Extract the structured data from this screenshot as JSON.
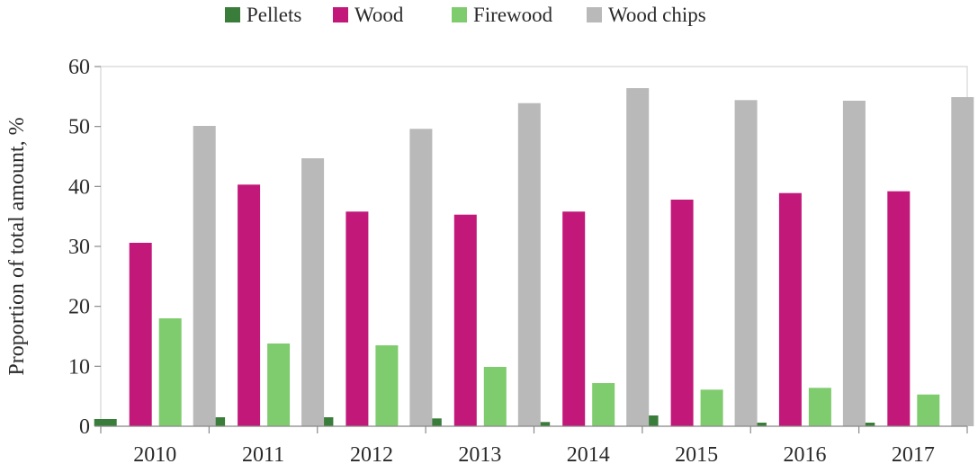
{
  "chart_data": {
    "type": "bar",
    "title": "",
    "xlabel": "",
    "ylabel": "Proportion of total amount, %",
    "ylim": [
      0,
      60
    ],
    "yticks": [
      "0",
      "10",
      "20",
      "30",
      "40",
      "50",
      "60"
    ],
    "grid": false,
    "legend_position": "top",
    "categories": [
      "2010",
      "2011",
      "2012",
      "2013",
      "2014",
      "2015",
      "2016",
      "2017"
    ],
    "series": [
      {
        "name": "Pellets",
        "color": "#3a7d3a",
        "values": [
          1.2,
          1.5,
          1.5,
          1.3,
          0.7,
          1.8,
          0.6,
          0.6
        ]
      },
      {
        "name": "Wood",
        "color": "#c2187a",
        "values": [
          30.6,
          40.3,
          35.8,
          35.3,
          35.8,
          37.8,
          38.9,
          39.2
        ]
      },
      {
        "name": "Firewood",
        "color": "#7fcc6e",
        "values": [
          18.0,
          13.8,
          13.5,
          9.9,
          7.2,
          6.1,
          6.4,
          5.3
        ]
      },
      {
        "name": "Wood chips",
        "color": "#b9b9b9",
        "values": [
          50.1,
          44.7,
          49.6,
          53.9,
          56.4,
          54.4,
          54.3,
          54.9
        ]
      }
    ]
  }
}
